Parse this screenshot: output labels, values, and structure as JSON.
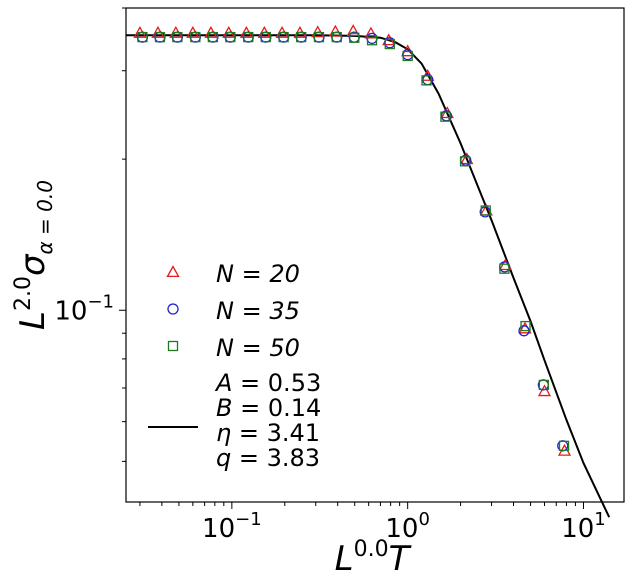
{
  "chart_data": {
    "type": "scatter",
    "xscale": "log",
    "yscale": "log",
    "xlim": [
      0.025,
      17
    ],
    "ylim": [
      0.0415,
      0.4
    ],
    "grid": false,
    "legend_placement": "lower-left",
    "xlabel": {
      "base": "L",
      "sup": "0.0",
      "tail": "T"
    },
    "ylabel": {
      "base": "L",
      "sup": "2.0",
      "sigma": "σ",
      "sub": "α = 0.0"
    },
    "xticks": [
      {
        "value": 0.1,
        "base": "10",
        "exp": "−1"
      },
      {
        "value": 1,
        "base": "10",
        "exp": "0"
      },
      {
        "value": 10,
        "base": "10",
        "exp": "1"
      }
    ],
    "yticks": [
      {
        "value": 0.1,
        "base": "10",
        "exp": "−1"
      }
    ],
    "series": [
      {
        "name": "N = 20",
        "marker": "triangle",
        "color": "#e41a1c",
        "x": [
          0.03,
          0.038,
          0.048,
          0.06,
          0.076,
          0.096,
          0.121,
          0.153,
          0.193,
          0.244,
          0.308,
          0.388,
          0.49,
          0.618,
          0.78,
          1.0,
          1.3,
          1.68,
          2.17,
          2.8,
          3.6,
          4.65,
          6.0,
          7.8
        ],
        "y": [
          0.357,
          0.357,
          0.357,
          0.357,
          0.357,
          0.357,
          0.357,
          0.357,
          0.357,
          0.357,
          0.358,
          0.359,
          0.36,
          0.356,
          0.345,
          0.328,
          0.293,
          0.247,
          0.2,
          0.158,
          0.123,
          0.092,
          0.069,
          0.0525
        ]
      },
      {
        "name": "N = 35",
        "marker": "circle",
        "color": "#1f1fd6",
        "x": [
          0.031,
          0.039,
          0.049,
          0.062,
          0.078,
          0.098,
          0.124,
          0.156,
          0.197,
          0.248,
          0.313,
          0.395,
          0.497,
          0.627,
          0.791,
          1.0,
          1.3,
          1.66,
          2.14,
          2.76,
          3.56,
          4.59,
          5.91,
          7.62
        ],
        "y": [
          0.35,
          0.35,
          0.35,
          0.35,
          0.35,
          0.35,
          0.35,
          0.35,
          0.35,
          0.35,
          0.35,
          0.35,
          0.35,
          0.348,
          0.341,
          0.323,
          0.288,
          0.244,
          0.199,
          0.157,
          0.122,
          0.091,
          0.071,
          0.0537
        ]
      },
      {
        "name": "N = 50",
        "marker": "square",
        "color": "#1e7a1e",
        "x": [
          0.031,
          0.039,
          0.049,
          0.062,
          0.078,
          0.098,
          0.124,
          0.156,
          0.197,
          0.248,
          0.313,
          0.395,
          0.497,
          0.627,
          0.791,
          1.0,
          1.28,
          1.64,
          2.12,
          2.78,
          3.55,
          4.68,
          5.95,
          7.75
        ],
        "y": [
          0.35,
          0.35,
          0.35,
          0.35,
          0.35,
          0.35,
          0.35,
          0.35,
          0.35,
          0.35,
          0.35,
          0.35,
          0.349,
          0.345,
          0.339,
          0.321,
          0.287,
          0.243,
          0.198,
          0.158,
          0.121,
          0.093,
          0.071,
          0.0537
        ]
      }
    ],
    "fit": {
      "name": "fit",
      "color": "#000000",
      "params": [
        {
          "symbol": "A",
          "value": "0.53"
        },
        {
          "symbol": "B",
          "value": "0.14"
        },
        {
          "symbol": "η",
          "value": "3.41"
        },
        {
          "symbol": "q",
          "value": "3.83"
        }
      ],
      "x": [
        0.025,
        0.1,
        0.3,
        0.5,
        0.7,
        0.85,
        1.0,
        1.2,
        1.5,
        2.0,
        2.5,
        3.0,
        4.0,
        5.0,
        6.0,
        8.0,
        10.0,
        14.0
      ],
      "y": [
        0.353,
        0.353,
        0.353,
        0.352,
        0.349,
        0.342,
        0.331,
        0.31,
        0.27,
        0.215,
        0.177,
        0.151,
        0.116,
        0.095,
        0.0795,
        0.0605,
        0.0496,
        0.0387
      ]
    }
  }
}
